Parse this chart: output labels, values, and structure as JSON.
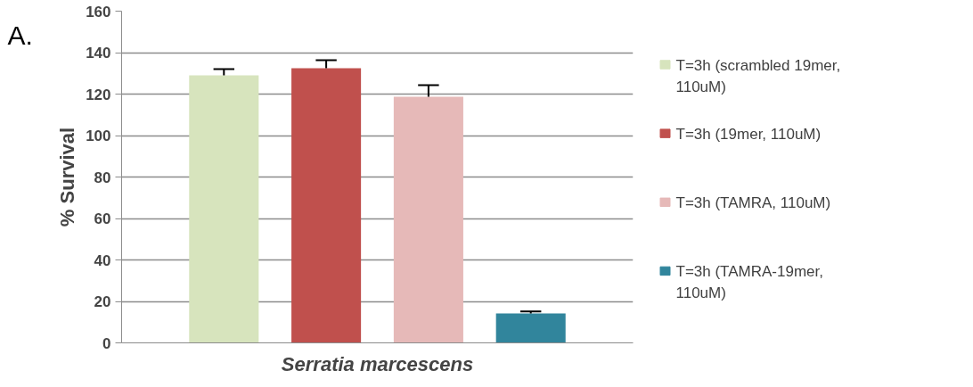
{
  "chart_data": {
    "type": "bar",
    "title": "A.",
    "xlabel": "Serratia marcescens",
    "ylabel": "% Survival",
    "categories": [
      null
    ],
    "series": [
      {
        "name": "T=3h (scrambled 19mer, 110uM)",
        "color": "#d7e4bd",
        "values": [
          129
        ],
        "errors": [
          [
            129,
            132
          ]
        ]
      },
      {
        "name": "T=3h (19mer, 110uM)",
        "color": "#c0504d",
        "values": [
          132.5
        ],
        "errors": [
          [
            132.5,
            136.3
          ]
        ]
      },
      {
        "name": "T=3h (TAMRA, 110uM)",
        "color": "#e6b9b8",
        "values": [
          118.7
        ],
        "errors": [
          [
            118.7,
            124.3
          ]
        ]
      },
      {
        "name": "T=3h (TAMRA-19mer, 110uM)",
        "color": "#31859c",
        "values": [
          14.2
        ],
        "errors": [
          [
            14.2,
            15.2
          ]
        ]
      }
    ],
    "ylim": [
      0,
      160
    ],
    "yticks": [
      0,
      20,
      40,
      60,
      80,
      100,
      120,
      140,
      160
    ],
    "grid": "y",
    "legend": "right"
  }
}
